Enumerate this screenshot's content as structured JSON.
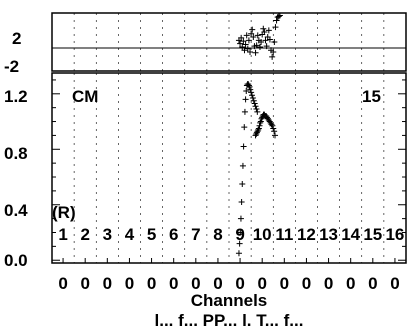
{
  "chart_data": [
    {
      "panel": "residual",
      "type": "scatter",
      "ylim": [
        -3.5,
        3.5
      ],
      "ytick_labels": [
        "2",
        "-2"
      ],
      "ytick_values": [
        2,
        -2
      ],
      "reference_line": 0,
      "marker": "+",
      "color": "#000000",
      "x": [
        8.95,
        9.0,
        9.05,
        9.1,
        9.15,
        9.2,
        9.25,
        9.3,
        9.35,
        9.4,
        9.45,
        9.5,
        9.55,
        9.6,
        9.65,
        9.7,
        9.75,
        9.8,
        9.85,
        9.9,
        9.95,
        10.0,
        10.05,
        10.1,
        10.15,
        10.2,
        10.25,
        10.3,
        10.35,
        10.4,
        10.45,
        10.5,
        10.55,
        10.6,
        10.65,
        10.7,
        10.75,
        10.8
      ],
      "values": [
        0.2,
        -0.2,
        0.5,
        -0.6,
        0.1,
        -1.0,
        -0.3,
        0.8,
        -0.8,
        0.2,
        -1.2,
        1.0,
        1.5,
        0.6,
        -0.5,
        -1.3,
        -0.4,
        0.8,
        0.2,
        -0.6,
        0.0,
        0.9,
        1.6,
        1.2,
        0.2,
        -0.5,
        0.6,
        1.4,
        0.3,
        -1.0,
        -1.8,
        -1.2,
        0.0,
        1.8,
        2.6,
        3.0,
        3.1,
        3.2
      ]
    },
    {
      "panel": "main",
      "type": "scatter",
      "xlabel": "Channels",
      "xlim": [
        0.5,
        16.5
      ],
      "ylim": [
        -0.02,
        1.35
      ],
      "ytick_labels": [
        "1.2",
        "0.8",
        "0.4",
        "0.0"
      ],
      "ytick_values": [
        1.2,
        0.8,
        0.4,
        0.0
      ],
      "xtick_labels": [
        "0",
        "0",
        "0",
        "0",
        "0",
        "0",
        "0",
        "0",
        "0",
        "0",
        "0",
        "0",
        "0",
        "0",
        "0",
        "0"
      ],
      "channel_labels": [
        "1",
        "2",
        "3",
        "4",
        "5",
        "6",
        "7",
        "8",
        "9",
        "10",
        "11",
        "12",
        "13",
        "14",
        "15",
        "16"
      ],
      "annotations": {
        "left_top": "CM",
        "right_top": "15",
        "left_mid": "(R)"
      },
      "marker": "+",
      "color": "#000000",
      "series": [
        {
          "x": [
            8.95,
            8.98,
            9.01,
            9.04,
            9.07,
            9.1,
            9.13,
            9.16,
            9.19,
            9.22,
            9.25,
            9.28,
            9.31,
            9.34,
            9.37,
            9.4,
            9.43,
            9.46,
            9.5,
            9.54,
            9.58,
            9.62,
            9.66,
            9.7,
            9.74,
            9.78
          ],
          "values": [
            0.05,
            0.12,
            0.2,
            0.3,
            0.42,
            0.55,
            0.68,
            0.82,
            0.96,
            1.07,
            1.16,
            1.22,
            1.26,
            1.27,
            1.27,
            1.26,
            1.25,
            1.23,
            1.21,
            1.19,
            1.17,
            1.15,
            1.13,
            1.11,
            1.09,
            1.07
          ]
        },
        {
          "x": [
            9.7,
            9.73,
            9.76,
            9.79,
            9.82,
            9.85,
            9.88,
            9.91,
            9.94,
            9.97,
            10.0,
            10.03,
            10.06,
            10.1,
            10.14,
            10.18,
            10.22,
            10.26,
            10.3,
            10.34,
            10.38,
            10.42,
            10.46,
            10.5,
            10.54,
            10.58
          ],
          "values": [
            0.9,
            0.91,
            0.92,
            0.93,
            0.94,
            0.95,
            0.97,
            0.99,
            1.0,
            1.02,
            1.03,
            1.04,
            1.05,
            1.05,
            1.04,
            1.04,
            1.03,
            1.02,
            1.01,
            1.0,
            0.99,
            0.98,
            0.97,
            0.95,
            0.93,
            0.9
          ]
        }
      ]
    }
  ],
  "bottom_caption": "l... f... PP... l. T... f..."
}
